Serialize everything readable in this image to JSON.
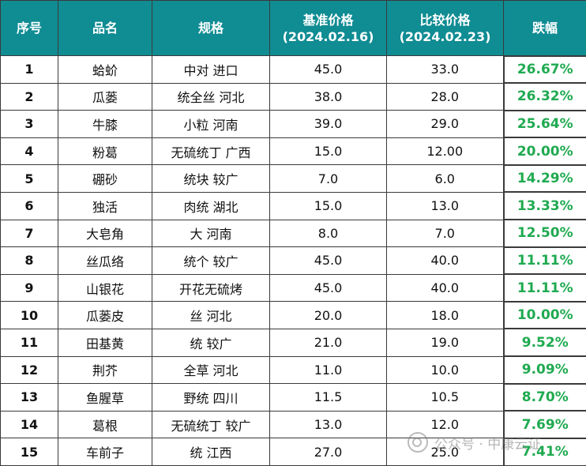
{
  "headers": {
    "seq": "序号",
    "name": "品名",
    "spec": "规格",
    "base_price_line1": "基准价格",
    "base_price_line2": "(2024.02.16)",
    "compare_price_line1": "比较价格",
    "compare_price_line2": "(2024.02.23)",
    "drop": "跌幅"
  },
  "rows": [
    {
      "seq": "1",
      "name": "蛤蚧",
      "spec": "中对 进口",
      "base": "45.0",
      "compare": "33.0",
      "drop": "26.67%"
    },
    {
      "seq": "2",
      "name": "瓜蒌",
      "spec": "统全丝 河北",
      "base": "38.0",
      "compare": "28.0",
      "drop": "26.32%"
    },
    {
      "seq": "3",
      "name": "牛膝",
      "spec": "小粒 河南",
      "base": "39.0",
      "compare": "29.0",
      "drop": "25.64%"
    },
    {
      "seq": "4",
      "name": "粉葛",
      "spec": "无硫统丁 广西",
      "base": "15.0",
      "compare": "12.00",
      "drop": "20.00%"
    },
    {
      "seq": "5",
      "name": "硼砂",
      "spec": "统块 较广",
      "base": "7.0",
      "compare": "6.0",
      "drop": "14.29%"
    },
    {
      "seq": "6",
      "name": "独活",
      "spec": "肉统 湖北",
      "base": "15.0",
      "compare": "13.0",
      "drop": "13.33%"
    },
    {
      "seq": "7",
      "name": "大皂角",
      "spec": "大 河南",
      "base": "8.0",
      "compare": "7.0",
      "drop": "12.50%"
    },
    {
      "seq": "8",
      "name": "丝瓜络",
      "spec": "统个 较广",
      "base": "45.0",
      "compare": "40.0",
      "drop": "11.11%"
    },
    {
      "seq": "9",
      "name": "山银花",
      "spec": "开花无硫烤",
      "base": "45.0",
      "compare": "40.0",
      "drop": "11.11%"
    },
    {
      "seq": "10",
      "name": "瓜蒌皮",
      "spec": "丝 河北",
      "base": "20.0",
      "compare": "18.0",
      "drop": "10.00%"
    },
    {
      "seq": "11",
      "name": "田基黄",
      "spec": "统 较广",
      "base": "21.0",
      "compare": "19.0",
      "drop": "9.52%"
    },
    {
      "seq": "12",
      "name": "荆芥",
      "spec": "全草 河北",
      "base": "11.0",
      "compare": "10.0",
      "drop": "9.09%"
    },
    {
      "seq": "13",
      "name": "鱼腥草",
      "spec": "野统 四川",
      "base": "11.5",
      "compare": "10.5",
      "drop": "8.70%"
    },
    {
      "seq": "14",
      "name": "葛根",
      "spec": "无硫统丁 较广",
      "base": "13.0",
      "compare": "12.0",
      "drop": "7.69%"
    },
    {
      "seq": "15",
      "name": "车前子",
      "spec": "统 江西",
      "base": "27.0",
      "compare": "25.0",
      "drop": "7.41%"
    }
  ],
  "watermark": "公众号 · 中康云证",
  "colors": {
    "header_bg": "#108c93",
    "header_text": "#ffffff",
    "drop_text": "#1faa50"
  }
}
